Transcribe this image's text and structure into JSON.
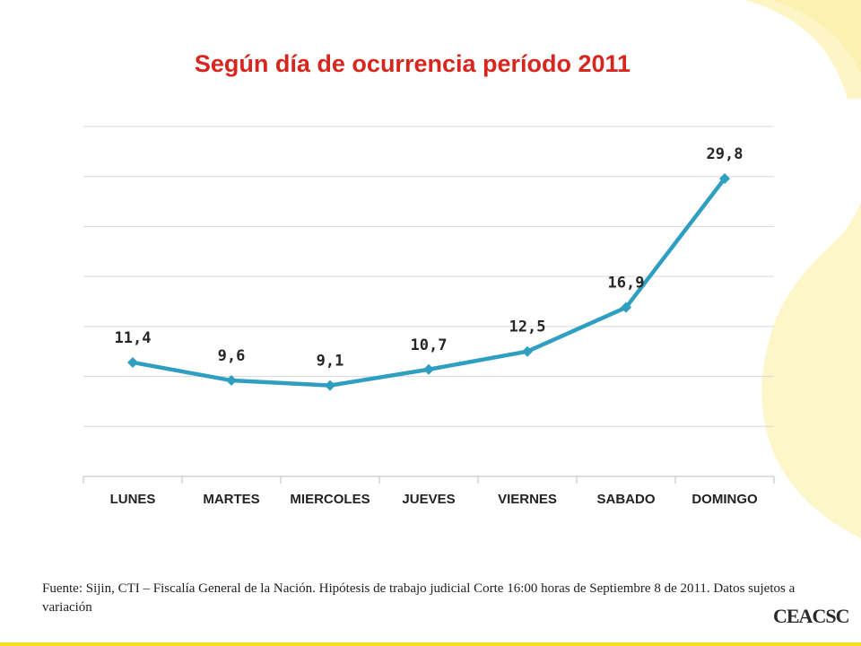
{
  "chart_data": {
    "type": "line",
    "title": "Según día de ocurrencia período 2011",
    "xlabel": "",
    "ylabel": "",
    "categories": [
      "LUNES",
      "MARTES",
      "MIERCOLES",
      "JUEVES",
      "VIERNES",
      "SABADO",
      "DOMINGO"
    ],
    "series": [
      {
        "values": [
          11.4,
          9.6,
          9.1,
          10.7,
          12.5,
          16.9,
          29.8
        ]
      }
    ],
    "data_labels": [
      "11,4",
      "9,6",
      "9,1",
      "10,7",
      "12,5",
      "16,9",
      "29,8"
    ],
    "ylim": [
      0,
      35
    ],
    "ytick_step": 5,
    "y_axis_labels_shown": false,
    "grid": true,
    "legend": "none",
    "line_color": "#2f9fc1",
    "grid_color": "#d9d9d9"
  },
  "footer": {
    "source": "Fuente: Sijin,  CTI – Fiscalía General de la Nación.  Hipótesis de trabajo judicial  Corte 16:00 horas de  Septiembre 8 de  2011.  Datos sujetos a variación"
  },
  "logo": {
    "text": "CEACSC"
  },
  "colors": {
    "title": "#d7261e",
    "background_swoosh": "#fdf6c8",
    "accent_yellow": "#f3df1d"
  }
}
